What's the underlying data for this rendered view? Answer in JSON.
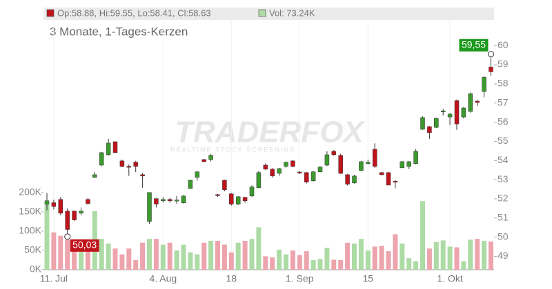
{
  "chart_data": {
    "type": "candlestick",
    "subtitle": "3 Monate, 1-Tages-Kerzen",
    "header": {
      "ohlc_label": "Op:58.88, Hi:59.55, Lo:58.41, Cl:58.63",
      "volume_label": "Vol: 73.24K"
    },
    "watermark": {
      "brand": "TRADERFOX",
      "tagline": "REALTIME STOCK SCREENING"
    },
    "annotations": {
      "high_label": "59,55",
      "low_label": "50,03"
    },
    "categories": [
      null,
      "11. Jul",
      null,
      null,
      null,
      null,
      null,
      null,
      null,
      null,
      null,
      null,
      null,
      null,
      null,
      null,
      null,
      "4. Aug",
      null,
      null,
      null,
      null,
      null,
      null,
      null,
      null,
      null,
      "18",
      null,
      null,
      null,
      null,
      null,
      null,
      null,
      null,
      null,
      "1. Sep",
      null,
      null,
      null,
      null,
      null,
      null,
      null,
      null,
      null,
      "15",
      null,
      null,
      null,
      null,
      null,
      null,
      null,
      null,
      null,
      null,
      null,
      "1. Okt",
      null,
      null,
      null,
      null,
      null,
      null
    ],
    "open": [
      51.72,
      51.8,
      51.97,
      51.36,
      51.36,
      51.25,
      51.97,
      53.12,
      53.76,
      54.3,
      54.98,
      53.98,
      53.7,
      53.91,
      53.26,
      50.82,
      52.01,
      51.9,
      51.97,
      51.92,
      51.79,
      52.54,
      53.12,
      54.05,
      54.05,
      52.22,
      52.97,
      52.26,
      51.72,
      52.08,
      52.15,
      52.58,
      53.76,
      53.55,
      53.33,
      53.69,
      53.98,
      53.4,
      53.37,
      52.94,
      53.41,
      53.76,
      54.48,
      54.27,
      53.26,
      52.83,
      53.48,
      53.84,
      54.59,
      53.37,
      53.37,
      52.92,
      53.62,
      53.69,
      53.84,
      55.63,
      55.77,
      55.73,
      56.55,
      56.27,
      57.13,
      56.27,
      56.56,
      57.1,
      57.6,
      58.88
    ],
    "high": [
      52.3,
      51.95,
      52.1,
      51.5,
      51.4,
      51.55,
      52.05,
      53.4,
      54.45,
      55.13,
      55.0,
      54.05,
      53.8,
      53.98,
      53.35,
      52.33,
      52.05,
      52.08,
      52.05,
      52.15,
      52.2,
      53.0,
      53.45,
      54.08,
      54.35,
      52.26,
      53.0,
      52.3,
      52.15,
      52.1,
      52.7,
      53.45,
      53.85,
      53.6,
      53.62,
      53.95,
      54.02,
      53.45,
      53.41,
      53.45,
      53.7,
      54.48,
      54.55,
      54.35,
      53.3,
      53.25,
      53.98,
      54.05,
      54.9,
      53.4,
      53.41,
      52.98,
      53.98,
      53.98,
      54.6,
      56.3,
      55.8,
      56.24,
      56.7,
      56.48,
      57.18,
      56.8,
      57.55,
      57.16,
      58.4,
      59.55
    ],
    "low": [
      51.4,
      51.45,
      51.15,
      50.03,
      50.85,
      51.15,
      51.7,
      53.1,
      53.7,
      54.25,
      54.4,
      53.65,
      53.2,
      53.4,
      52.58,
      50.7,
      51.55,
      51.8,
      51.8,
      51.75,
      51.75,
      52.5,
      52.95,
      53.9,
      53.95,
      52.1,
      52.4,
      51.65,
      51.68,
      51.8,
      52.1,
      52.55,
      53.5,
      53.12,
      53.2,
      53.62,
      53.65,
      53.3,
      52.8,
      52.9,
      53.38,
      53.7,
      54.25,
      53.3,
      52.7,
      52.8,
      53.45,
      53.8,
      53.62,
      53.22,
      52.7,
      52.55,
      53.6,
      53.55,
      53.8,
      55.6,
      55.13,
      55.7,
      56.35,
      55.85,
      55.6,
      56.2,
      56.5,
      56.85,
      57.3,
      58.41
    ],
    "close": [
      51.9,
      51.6,
      51.25,
      50.4,
      50.9,
      51.36,
      51.75,
      53.26,
      54.41,
      54.91,
      54.41,
      53.69,
      53.66,
      53.69,
      53.19,
      52.33,
      51.72,
      51.97,
      51.9,
      51.94,
      52.15,
      52.97,
      53.41,
      53.94,
      54.27,
      52.2,
      52.47,
      51.72,
      52.11,
      51.9,
      52.62,
      53.37,
      53.55,
      53.19,
      53.58,
      53.91,
      53.69,
      53.37,
      52.87,
      53.41,
      53.66,
      54.3,
      54.3,
      53.33,
      52.76,
      53.19,
      53.94,
      53.91,
      53.69,
      53.26,
      52.72,
      52.9,
      53.94,
      53.94,
      54.48,
      56.24,
      55.45,
      56.2,
      56.59,
      56.42,
      55.91,
      56.74,
      57.49,
      57.03,
      58.35,
      58.63
    ],
    "volume": [
      170,
      97,
      88,
      78,
      57,
      62,
      70,
      152,
      80,
      68,
      55,
      40,
      55,
      25,
      70,
      80,
      80,
      65,
      70,
      50,
      65,
      45,
      40,
      70,
      75,
      75,
      65,
      45,
      70,
      75,
      80,
      110,
      35,
      32,
      52,
      40,
      50,
      38,
      48,
      25,
      28,
      57,
      26,
      25,
      70,
      68,
      80,
      50,
      60,
      62,
      48,
      92,
      68,
      30,
      22,
      178,
      55,
      72,
      76,
      60,
      58,
      22,
      78,
      80,
      75,
      73.24
    ],
    "ylim": [
      48.3,
      61.3
    ],
    "yticks": [
      49,
      50,
      51,
      52,
      53,
      54,
      55,
      56,
      57,
      58,
      59,
      60
    ],
    "y2lim": [
      0,
      646
    ],
    "y2ticks": [
      {
        "value": 0,
        "label": "0K"
      },
      {
        "value": 50,
        "label": "50K"
      },
      {
        "value": 100,
        "label": "100K"
      },
      {
        "value": 150,
        "label": "150K"
      },
      {
        "value": 200,
        "label": "200K"
      }
    ],
    "colors": {
      "up": "#3c9a2e",
      "down": "#c0141c",
      "volume_up": "#addba5",
      "volume_down": "#eda4ad"
    }
  }
}
